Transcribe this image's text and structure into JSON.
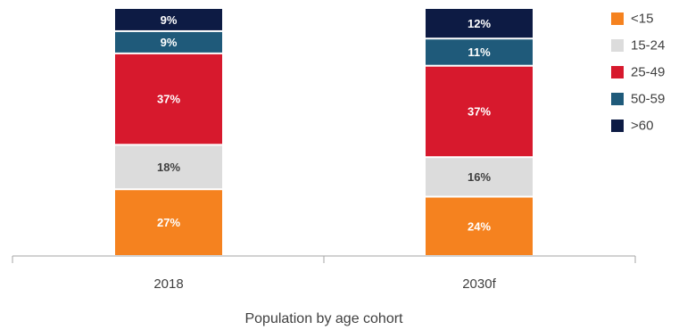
{
  "chart_data": {
    "type": "bar",
    "stacked": true,
    "percent_stacked": true,
    "categories": [
      "2018",
      "2030f"
    ],
    "series": [
      {
        "name": "<15",
        "values": [
          27,
          24
        ],
        "labels": [
          "27%",
          "24%"
        ],
        "color": "#f5821f",
        "label_color": "#ffffff"
      },
      {
        "name": "15-24",
        "values": [
          18,
          16
        ],
        "labels": [
          "18%",
          "16%"
        ],
        "color": "#dcdcdc",
        "label_color": "#404040"
      },
      {
        "name": "25-49",
        "values": [
          37,
          37
        ],
        "labels": [
          "37%",
          "37%"
        ],
        "color": "#d7192d",
        "label_color": "#ffffff"
      },
      {
        "name": "50-59",
        "values": [
          9,
          11
        ],
        "labels": [
          "9%",
          "11%"
        ],
        "color": "#1f5a7a",
        "label_color": "#ffffff"
      },
      {
        "name": ">60",
        "values": [
          9,
          12
        ],
        "labels": [
          "9%",
          "12%"
        ],
        "color": "#0d1b44",
        "label_color": "#ffffff"
      }
    ],
    "xlabel": "Population by age cohort",
    "ylabel": "",
    "ylim": [
      0,
      100
    ],
    "grid": false,
    "legend_position": "top-right"
  }
}
